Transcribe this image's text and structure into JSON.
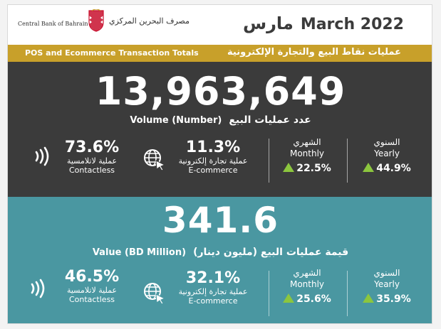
{
  "header": {
    "org_en": "Central Bank of Bahrain",
    "org_ar": "مصرف البحرين المركزي",
    "title_ar": "مارس",
    "title_en": "March  2022"
  },
  "banner": {
    "en": "POS and Ecommerce Transaction Totals",
    "ar": "عمليات نقاط البيع والتجارة الإلكترونية"
  },
  "volume": {
    "total": "13,963,649",
    "label_en": "Volume (Number)",
    "label_ar": "عدد عمليات البيع",
    "contactless": {
      "pct": "73.6%",
      "label_ar": "عملية لاتلامسية",
      "label_en": "Contactless"
    },
    "ecommerce": {
      "pct": "11.3%",
      "label_ar": "عملية تجارة إلكترونية",
      "label_en": "E-commerce"
    },
    "monthly": {
      "label_ar": "الشهري",
      "label_en": "Monthly",
      "change": "22.5%"
    },
    "yearly": {
      "label_ar": "السنوي",
      "label_en": "Yearly",
      "change": "44.9%"
    }
  },
  "value": {
    "total": "341.6",
    "label_en": "Value (BD Million)",
    "label_ar": "قيمة عمليات البيع (مليون دينار)",
    "contactless": {
      "pct": "46.5%",
      "label_ar": "عملية لاتلامسية",
      "label_en": "Contactless"
    },
    "ecommerce": {
      "pct": "32.1%",
      "label_ar": "عملية تجارة إلكترونية",
      "label_en": "E-commerce"
    },
    "monthly": {
      "label_ar": "الشهري",
      "label_en": "Monthly",
      "change": "25.6%"
    },
    "yearly": {
      "label_ar": "السنوي",
      "label_en": "Yearly",
      "change": "35.9%"
    }
  },
  "colors": {
    "dark_panel": "#3b3b3b",
    "teal_panel": "#4a97a1",
    "gold_bar": "#c8a02a",
    "up_arrow": "#8cc63e"
  }
}
